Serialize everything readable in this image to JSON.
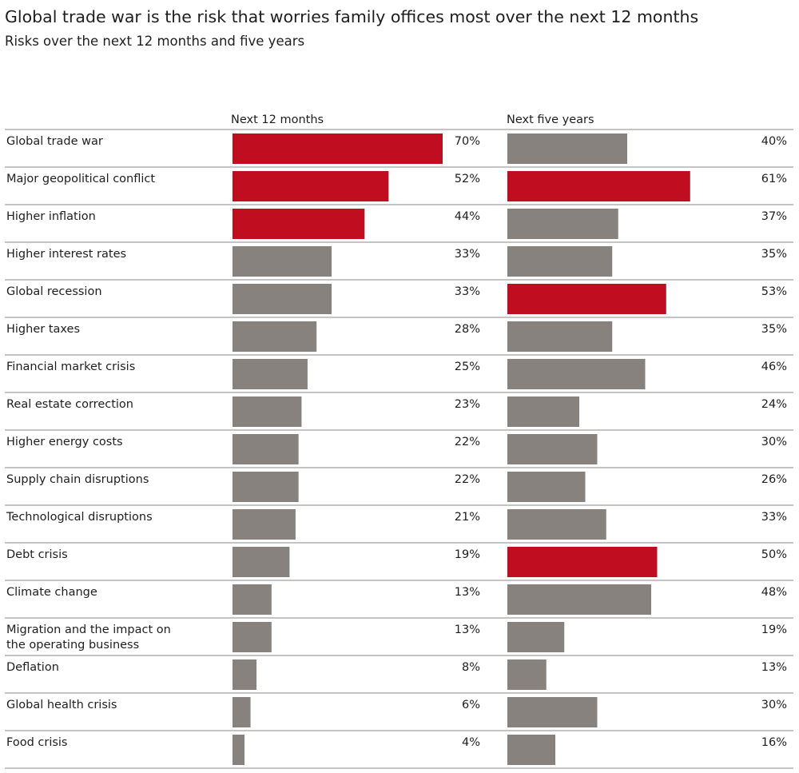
{
  "title": "Global trade war is the risk that worries family offices most over the next 12 months",
  "subtitle": "Risks over the next 12 months and five years",
  "colors": {
    "highlight": "#c00d20",
    "neutral": "#87827d",
    "divider": "#8a8a8a",
    "text": "#1e1e1e"
  },
  "chart_data": {
    "type": "bar",
    "orientation": "horizontal",
    "title": "Global trade war is the risk that worries family offices most over the next 12 months",
    "subtitle": "Risks over the next 12 months and five years",
    "value_suffix": "%",
    "categories": [
      "Global trade war",
      "Major geopolitical conflict",
      "Higher inflation",
      "Higher interest rates",
      "Global recession",
      "Higher taxes",
      "Financial market crisis",
      "Real estate correction",
      "Higher energy costs",
      "Supply chain disruptions",
      "Technological disruptions",
      "Debt crisis",
      "Climate change",
      [
        "Migration and the impact on",
        "the operating business"
      ],
      "Deflation",
      "Global health crisis",
      "Food crisis"
    ],
    "series": [
      {
        "name": "Next 12 months",
        "values": [
          70,
          52,
          44,
          33,
          33,
          28,
          25,
          23,
          22,
          22,
          21,
          19,
          13,
          13,
          8,
          6,
          4
        ],
        "highlighted": [
          true,
          true,
          true,
          false,
          false,
          false,
          false,
          false,
          false,
          false,
          false,
          false,
          false,
          false,
          false,
          false,
          false
        ]
      },
      {
        "name": "Next five years",
        "values": [
          40,
          61,
          37,
          35,
          53,
          35,
          46,
          24,
          30,
          26,
          33,
          50,
          48,
          19,
          13,
          30,
          16
        ],
        "highlighted": [
          false,
          true,
          false,
          false,
          true,
          false,
          false,
          false,
          false,
          false,
          false,
          true,
          false,
          false,
          false,
          false,
          false
        ]
      }
    ]
  }
}
